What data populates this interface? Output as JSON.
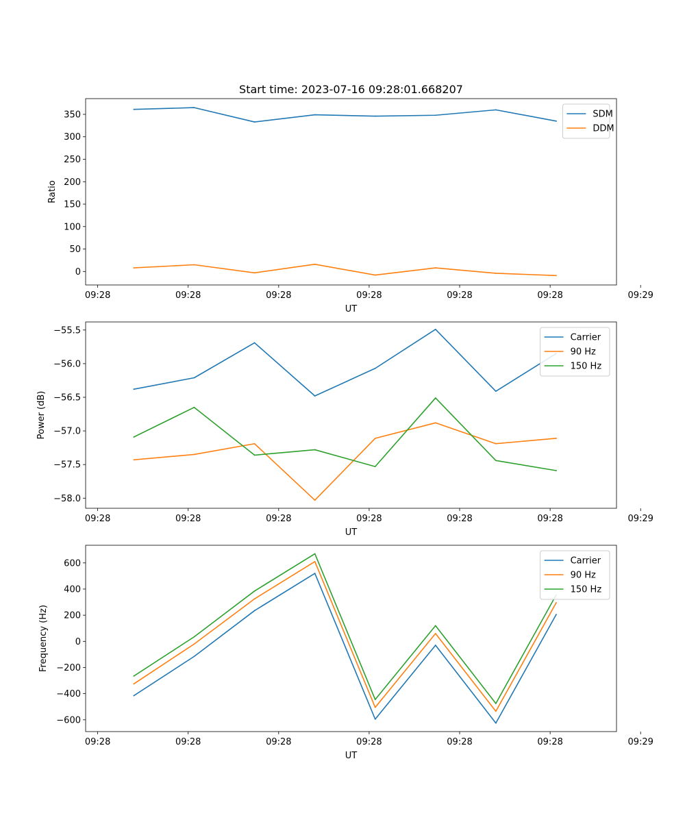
{
  "chart_data": [
    {
      "type": "line",
      "title": "Start time: 2023-07-16 09:28:01.668207",
      "xlabel": "UT",
      "ylabel": "Ratio",
      "ylim": [
        -30,
        385
      ],
      "yticks": [
        0,
        50,
        100,
        150,
        200,
        250,
        300,
        350
      ],
      "x": [
        1,
        2,
        3,
        4,
        5,
        6,
        7,
        8
      ],
      "xlim": [
        0.2,
        9.0
      ],
      "xtick_positions": [
        0.4,
        1.9,
        3.4,
        4.9,
        6.4,
        7.9,
        9.4
      ],
      "xtick_labels": [
        "09:28",
        "09:28",
        "09:28",
        "09:28",
        "09:28",
        "09:28",
        "09:29"
      ],
      "legend_position": "top-right",
      "series": [
        {
          "name": "SDM",
          "color": "#1f77b4",
          "values": [
            361,
            365,
            333,
            349,
            346,
            348,
            360,
            335
          ]
        },
        {
          "name": "DDM",
          "color": "#ff7f0e",
          "values": [
            8,
            15,
            -3,
            16,
            -8,
            8,
            -4,
            -9
          ]
        }
      ]
    },
    {
      "type": "line",
      "title": "",
      "xlabel": "UT",
      "ylabel": "Power (dB)",
      "ylim": [
        -58.15,
        -55.38
      ],
      "yticks": [
        -58.0,
        -57.5,
        -57.0,
        -56.5,
        -56.0,
        -55.5
      ],
      "ytick_labels": [
        "−58.0",
        "−57.5",
        "−57.0",
        "−56.5",
        "−56.0",
        "−55.5"
      ],
      "x": [
        1,
        2,
        3,
        4,
        5,
        6,
        7,
        8
      ],
      "xlim": [
        0.2,
        9.0
      ],
      "xtick_positions": [
        0.4,
        1.9,
        3.4,
        4.9,
        6.4,
        7.9,
        9.4
      ],
      "xtick_labels": [
        "09:28",
        "09:28",
        "09:28",
        "09:28",
        "09:28",
        "09:28",
        "09:29"
      ],
      "legend_position": "top-right",
      "series": [
        {
          "name": "Carrier",
          "color": "#1f77b4",
          "values": [
            -56.38,
            -56.21,
            -55.69,
            -56.48,
            -56.07,
            -55.49,
            -56.41,
            -55.85
          ]
        },
        {
          "name": "90 Hz",
          "color": "#ff7f0e",
          "values": [
            -57.43,
            -57.35,
            -57.19,
            -58.03,
            -57.11,
            -56.88,
            -57.19,
            -57.11
          ]
        },
        {
          "name": "150 Hz",
          "color": "#2ca02c",
          "values": [
            -57.09,
            -56.65,
            -57.36,
            -57.28,
            -57.53,
            -56.51,
            -57.44,
            -57.59
          ]
        }
      ]
    },
    {
      "type": "line",
      "title": "",
      "xlabel": "UT",
      "ylabel": "Frequency (Hz)",
      "ylim": [
        -690,
        735
      ],
      "yticks": [
        -600,
        -400,
        -200,
        0,
        200,
        400,
        600
      ],
      "ytick_labels": [
        "−600",
        "−400",
        "−200",
        "0",
        "200",
        "400",
        "600"
      ],
      "x": [
        1,
        2,
        3,
        4,
        5,
        6,
        7,
        8
      ],
      "xlim": [
        0.2,
        9.0
      ],
      "xtick_positions": [
        0.4,
        1.9,
        3.4,
        4.9,
        6.4,
        7.9,
        9.4
      ],
      "xtick_labels": [
        "09:28",
        "09:28",
        "09:28",
        "09:28",
        "09:28",
        "09:28",
        "09:29"
      ],
      "legend_position": "top-right",
      "series": [
        {
          "name": "Carrier",
          "color": "#1f77b4",
          "values": [
            -415,
            -115,
            235,
            520,
            -595,
            -30,
            -625,
            205
          ]
        },
        {
          "name": "90 Hz",
          "color": "#ff7f0e",
          "values": [
            -325,
            -20,
            325,
            610,
            -505,
            60,
            -535,
            295
          ]
        },
        {
          "name": "150 Hz",
          "color": "#2ca02c",
          "values": [
            -265,
            35,
            385,
            670,
            -445,
            120,
            -475,
            355
          ]
        }
      ]
    }
  ]
}
